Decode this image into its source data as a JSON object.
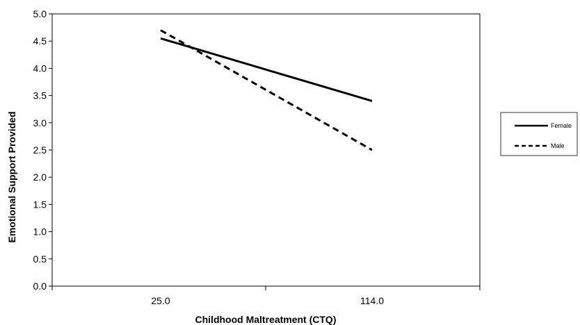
{
  "chart_data": {
    "type": "line",
    "title": "",
    "xlabel": "Childhood Maltreatment (CTQ)",
    "ylabel": "Emotional Support Provided",
    "categories": [
      "25.0",
      "114.0"
    ],
    "ylim": [
      0,
      5
    ],
    "ytick_step": 0.5,
    "yticks": [
      "0.0",
      "0.5",
      "1.0",
      "1.5",
      "2.0",
      "2.5",
      "3.0",
      "3.5",
      "4.0",
      "4.5",
      "5.0"
    ],
    "grid": false,
    "legend_position": "right",
    "series": [
      {
        "name": "Female",
        "values": [
          4.55,
          3.4
        ],
        "line_style": "solid",
        "color": "#000000"
      },
      {
        "name": "Male",
        "values": [
          4.7,
          2.5
        ],
        "line_style": "dashed",
        "color": "#000000"
      }
    ]
  }
}
